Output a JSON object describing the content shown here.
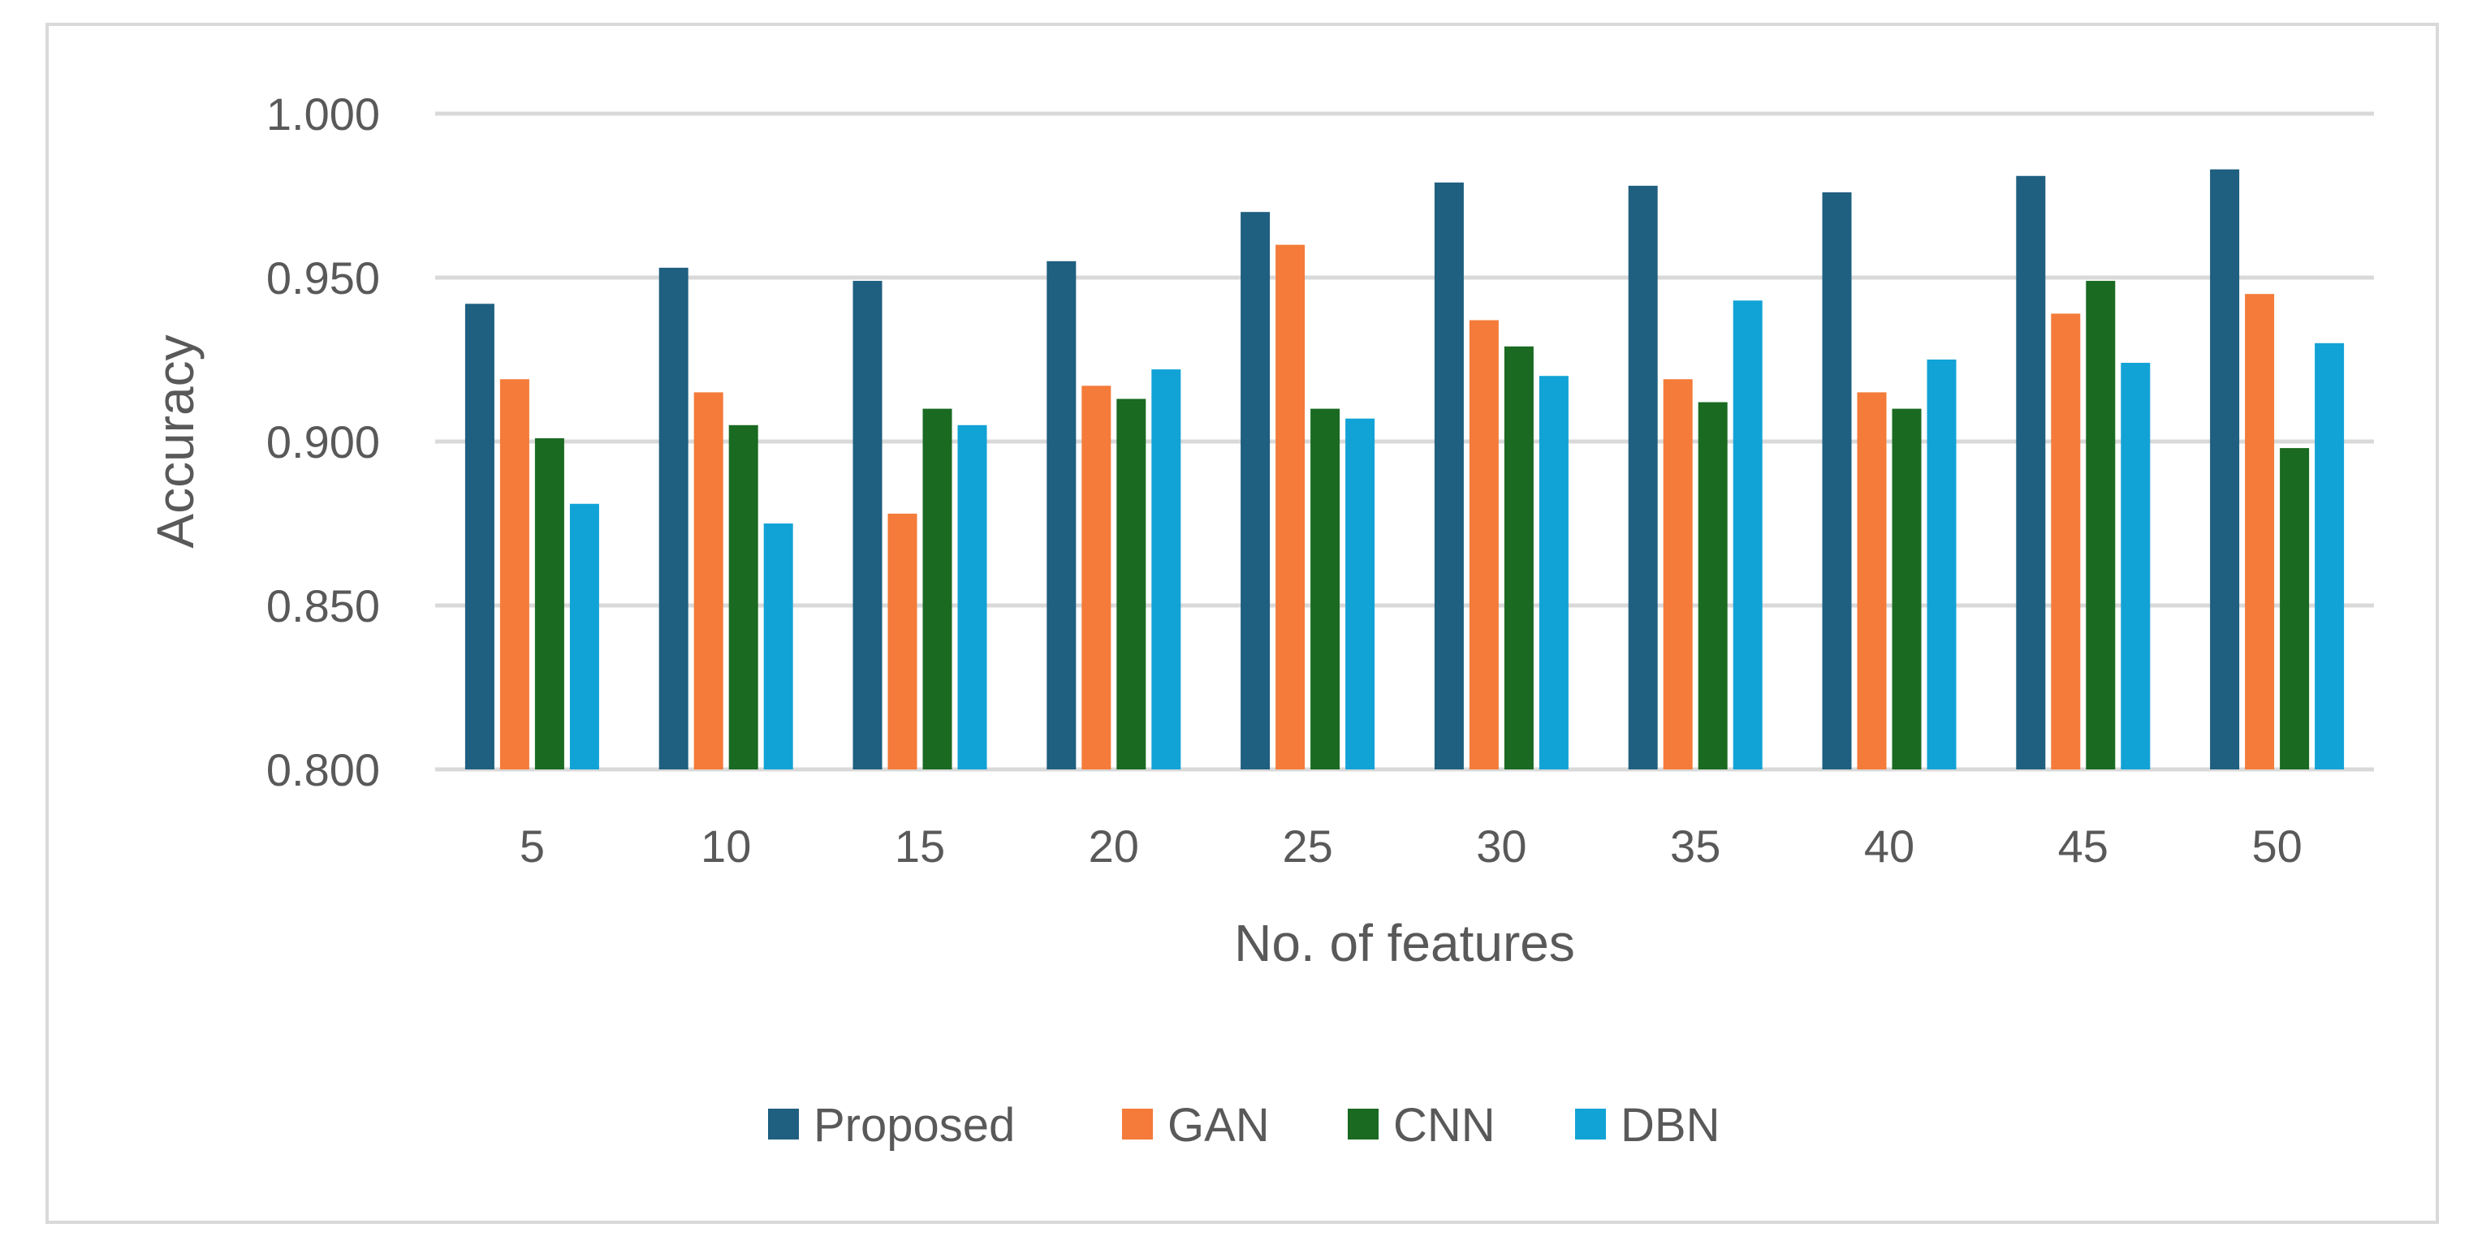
{
  "chart_data": {
    "type": "bar",
    "title": "",
    "xlabel": "No. of features",
    "ylabel": "Accuracy",
    "ylim": [
      0.8,
      1.0
    ],
    "yticks": [
      "0.800",
      "0.850",
      "0.900",
      "0.950",
      "1.000"
    ],
    "ytick_values": [
      0.8,
      0.85,
      0.9,
      0.95,
      1.0
    ],
    "grid": "horizontal",
    "legend_position": "bottom",
    "categories": [
      "5",
      "10",
      "15",
      "20",
      "25",
      "30",
      "35",
      "40",
      "45",
      "50"
    ],
    "series": [
      {
        "name": "Proposed",
        "color": "#1f5f80",
        "values": [
          0.942,
          0.953,
          0.949,
          0.955,
          0.97,
          0.979,
          0.978,
          0.976,
          0.981,
          0.983
        ]
      },
      {
        "name": "GAN",
        "color": "#f47b3a",
        "values": [
          0.919,
          0.915,
          0.878,
          0.917,
          0.96,
          0.937,
          0.919,
          0.915,
          0.939,
          0.945
        ]
      },
      {
        "name": "CNN",
        "color": "#1a6a22",
        "values": [
          0.901,
          0.905,
          0.91,
          0.913,
          0.91,
          0.929,
          0.912,
          0.91,
          0.949,
          0.898
        ]
      },
      {
        "name": "DBN",
        "color": "#12a3d6",
        "values": [
          0.881,
          0.875,
          0.905,
          0.922,
          0.907,
          0.92,
          0.943,
          0.925,
          0.924,
          0.93
        ]
      }
    ],
    "gridline_color": "#d9d9d9"
  }
}
